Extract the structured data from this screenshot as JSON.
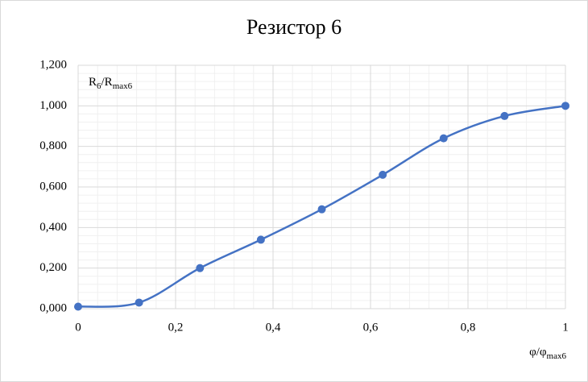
{
  "chart_data": {
    "type": "line",
    "title": "Резистор 6",
    "y_label": [
      {
        "text": "R"
      },
      {
        "text": "6",
        "sub": true
      },
      {
        "text": "/R"
      },
      {
        "text": "max6",
        "sub": true
      }
    ],
    "x_label": [
      {
        "text": "φ/φ"
      },
      {
        "text": "max6",
        "sub": true
      }
    ],
    "x": [
      0,
      0.125,
      0.25,
      0.375,
      0.5,
      0.625,
      0.75,
      0.875,
      1
    ],
    "series": [
      {
        "color": "#4472c4",
        "values": [
          0.01,
          0.03,
          0.2,
          0.34,
          0.49,
          0.66,
          0.84,
          0.95,
          1.0
        ]
      }
    ],
    "smooth": true,
    "xlim": [
      0,
      1
    ],
    "xticks": [
      0,
      {
        "value": 0.2,
        "label": "0,2"
      },
      {
        "value": 0.4,
        "label": "0,4"
      },
      {
        "value": 0.6,
        "label": "0,6"
      },
      {
        "value": 0.8,
        "label": "0,8"
      },
      1
    ],
    "ylim": [
      0,
      1.2
    ],
    "yticks": [
      {
        "value": 0,
        "label": "0,000"
      },
      {
        "value": 0.2,
        "label": "0,200"
      },
      {
        "value": 0.4,
        "label": "0,400"
      },
      {
        "value": 0.6,
        "label": "0,600"
      },
      {
        "value": 0.8,
        "label": "0,800"
      },
      {
        "value": 1.0,
        "label": "1,000"
      },
      {
        "value": 1.2,
        "label": "1,200"
      }
    ],
    "grid": true,
    "minor_grid": true
  }
}
